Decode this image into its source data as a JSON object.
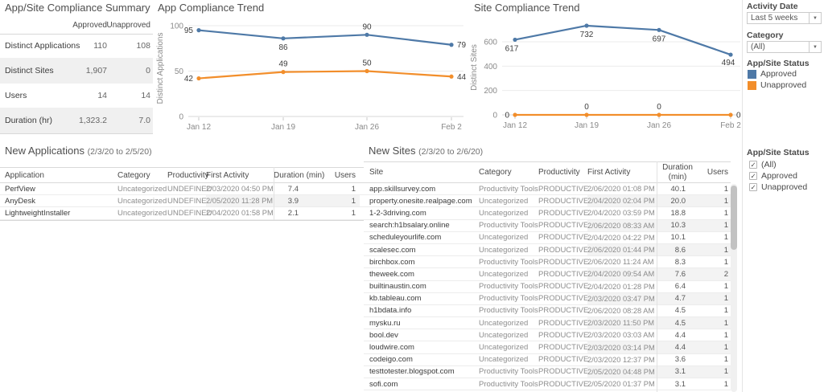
{
  "summary": {
    "title": "App/Site Compliance Summary",
    "col_headers": [
      "Approved",
      "Unapproved"
    ],
    "rows": [
      {
        "label": "Distinct Applications",
        "approved": "110",
        "unapproved": "108"
      },
      {
        "label": "Distinct Sites",
        "approved": "1,907",
        "unapproved": "0"
      },
      {
        "label": "Users",
        "approved": "14",
        "unapproved": "14"
      },
      {
        "label": "Duration (hr)",
        "approved": "1,323.2",
        "unapproved": "7.0"
      }
    ]
  },
  "chart_data": [
    {
      "id": "app_trend",
      "type": "line",
      "title": "App Compliance Trend",
      "ylabel": "Distinct Applications",
      "categories": [
        "Jan 12",
        "Jan 19",
        "Jan 26",
        "Feb 2"
      ],
      "series": [
        {
          "name": "Approved",
          "color": "#4e79a7",
          "values": [
            95,
            86,
            90,
            79
          ]
        },
        {
          "name": "Unapproved",
          "color": "#f28e2b",
          "values": [
            42,
            49,
            50,
            44
          ]
        }
      ],
      "ylim": [
        0,
        105
      ],
      "yticks": [
        0,
        50,
        100
      ],
      "grid": true,
      "legend_position": "right-panel"
    },
    {
      "id": "site_trend",
      "type": "line",
      "title": "Site Compliance Trend",
      "ylabel": "Distinct Sites",
      "categories": [
        "Jan 12",
        "Jan 19",
        "Jan 26",
        "Feb 2"
      ],
      "series": [
        {
          "name": "Approved",
          "color": "#4e79a7",
          "values": [
            617,
            732,
            697,
            494
          ]
        },
        {
          "name": "Unapproved",
          "color": "#f28e2b",
          "values": [
            0,
            0,
            0,
            0
          ]
        }
      ],
      "ylim": [
        0,
        800
      ],
      "yticks": [
        0,
        200,
        400,
        600
      ],
      "grid": true,
      "legend_position": "right-panel"
    }
  ],
  "filters": {
    "activity_date": {
      "label": "Activity Date",
      "value": "Last 5 weeks"
    },
    "category": {
      "label": "Category",
      "value": "(All)"
    },
    "legend": {
      "title": "App/Site Status",
      "items": [
        {
          "label": "Approved",
          "color": "#4e79a7"
        },
        {
          "label": "Unapproved",
          "color": "#f28e2b"
        }
      ]
    },
    "status_filter": {
      "title": "App/Site Status",
      "options": [
        {
          "label": "(All)",
          "checked": true
        },
        {
          "label": "Approved",
          "checked": true
        },
        {
          "label": "Unapproved",
          "checked": true
        }
      ]
    }
  },
  "new_applications": {
    "title": "New Applications",
    "date_range": "(2/3/20 to 2/5/20)",
    "columns": [
      "Application",
      "Category",
      "Productivity",
      "First Activity",
      "Duration (min)",
      "Users"
    ],
    "rows": [
      {
        "application": "PerfView",
        "category": "Uncategorized",
        "productivity": "UNDEFINED",
        "first_activity": "2/03/2020 04:50 PM",
        "duration": "7.4",
        "users": "1"
      },
      {
        "application": "AnyDesk",
        "category": "Uncategorized",
        "productivity": "UNDEFINED",
        "first_activity": "2/05/2020 11:28 PM",
        "duration": "3.9",
        "users": "1"
      },
      {
        "application": "LightweightInstaller",
        "category": "Uncategorized",
        "productivity": "UNDEFINED",
        "first_activity": "2/04/2020 01:58 PM",
        "duration": "2.1",
        "users": "1"
      }
    ]
  },
  "new_sites": {
    "title": "New Sites",
    "date_range": "(2/3/20 to 2/6/20)",
    "columns": [
      "Site",
      "Category",
      "Productivity",
      "First Activity",
      "Duration (min)",
      "Users"
    ],
    "rows": [
      {
        "site": "app.skillsurvey.com",
        "category": "Productivity Tools",
        "productivity": "PRODUCTIVE",
        "first_activity": "2/06/2020 01:08 PM",
        "duration": "40.1",
        "users": "1"
      },
      {
        "site": "property.onesite.realpage.com",
        "category": "Uncategorized",
        "productivity": "PRODUCTIVE",
        "first_activity": "2/04/2020 02:04 PM",
        "duration": "20.0",
        "users": "1"
      },
      {
        "site": "1-2-3driving.com",
        "category": "Uncategorized",
        "productivity": "PRODUCTIVE",
        "first_activity": "2/04/2020 03:59 PM",
        "duration": "18.8",
        "users": "1"
      },
      {
        "site": "search:h1bsalary.online",
        "category": "Productivity Tools",
        "productivity": "PRODUCTIVE",
        "first_activity": "2/06/2020 08:33 AM",
        "duration": "10.3",
        "users": "1"
      },
      {
        "site": "scheduleyourlife.com",
        "category": "Uncategorized",
        "productivity": "PRODUCTIVE",
        "first_activity": "2/04/2020 04:22 PM",
        "duration": "10.1",
        "users": "1"
      },
      {
        "site": "scalesec.com",
        "category": "Uncategorized",
        "productivity": "PRODUCTIVE",
        "first_activity": "2/06/2020 01:44 PM",
        "duration": "8.6",
        "users": "1"
      },
      {
        "site": "birchbox.com",
        "category": "Productivity Tools",
        "productivity": "PRODUCTIVE",
        "first_activity": "2/06/2020 11:24 AM",
        "duration": "8.3",
        "users": "1"
      },
      {
        "site": "theweek.com",
        "category": "Uncategorized",
        "productivity": "PRODUCTIVE",
        "first_activity": "2/04/2020 09:54 AM",
        "duration": "7.6",
        "users": "2"
      },
      {
        "site": "builtinaustin.com",
        "category": "Productivity Tools",
        "productivity": "PRODUCTIVE",
        "first_activity": "2/04/2020 01:28 PM",
        "duration": "6.4",
        "users": "1"
      },
      {
        "site": "kb.tableau.com",
        "category": "Productivity Tools",
        "productivity": "PRODUCTIVE",
        "first_activity": "2/03/2020 03:47 PM",
        "duration": "4.7",
        "users": "1"
      },
      {
        "site": "h1bdata.info",
        "category": "Productivity Tools",
        "productivity": "PRODUCTIVE",
        "first_activity": "2/06/2020 08:28 AM",
        "duration": "4.5",
        "users": "1"
      },
      {
        "site": "mysku.ru",
        "category": "Uncategorized",
        "productivity": "PRODUCTIVE",
        "first_activity": "2/03/2020 11:50 PM",
        "duration": "4.5",
        "users": "1"
      },
      {
        "site": "bool.dev",
        "category": "Uncategorized",
        "productivity": "PRODUCTIVE",
        "first_activity": "2/03/2020 03:03 AM",
        "duration": "4.4",
        "users": "1"
      },
      {
        "site": "loudwire.com",
        "category": "Uncategorized",
        "productivity": "PRODUCTIVE",
        "first_activity": "2/03/2020 03:14 PM",
        "duration": "4.4",
        "users": "1"
      },
      {
        "site": "codeigo.com",
        "category": "Uncategorized",
        "productivity": "PRODUCTIVE",
        "first_activity": "2/03/2020 12:37 PM",
        "duration": "3.6",
        "users": "1"
      },
      {
        "site": "testtotester.blogspot.com",
        "category": "Productivity Tools",
        "productivity": "PRODUCTIVE",
        "first_activity": "2/05/2020 04:48 PM",
        "duration": "3.1",
        "users": "1"
      },
      {
        "site": "sofi.com",
        "category": "Productivity Tools",
        "productivity": "PRODUCTIVE",
        "first_activity": "2/05/2020 01:37 PM",
        "duration": "3.1",
        "users": "1"
      }
    ]
  }
}
